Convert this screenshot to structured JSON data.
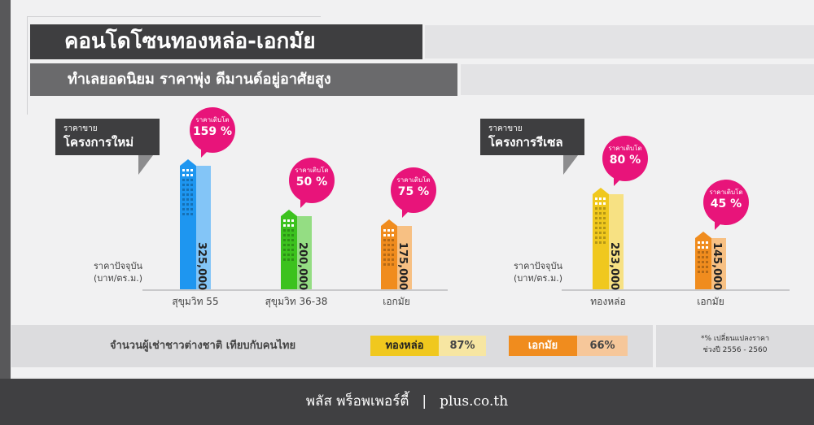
{
  "header": {
    "title": "คอนโดโซนทองหล่อ-เอกมัย",
    "subtitle": "ทำเลยอดนิยม ราคาพุ่ง ดีมานด์อยู่อาศัยสูง"
  },
  "colors": {
    "accent": "#e8147a",
    "sukhumvit55": "#1e96f0",
    "sukhumvit36": "#3cc21e",
    "ekkamai": "#f08c1e",
    "thonglor": "#f0c81e"
  },
  "chart_data": [
    {
      "type": "bar",
      "title_line1": "ราคาขาย",
      "title_line2": "โครงการใหม่",
      "ylabel_line1": "ราคาปัจจุบัน",
      "ylabel_line2": "(บาท/ตร.ม.)",
      "categories": [
        "สุขุมวิท 55",
        "สุขุมวิท 36-38",
        "เอกมัย"
      ],
      "values": [
        325000,
        200000,
        175000
      ],
      "value_labels": [
        "325,000",
        "200,000",
        "175,000"
      ],
      "growth_label": "ราคาเติบโต",
      "growth": [
        "159 %",
        "50 %",
        "75 %"
      ],
      "colors": [
        "#1e96f0",
        "#3cc21e",
        "#f08c1e"
      ]
    },
    {
      "type": "bar",
      "title_line1": "ราคาขาย",
      "title_line2": "โครงการรีเซล",
      "ylabel_line1": "ราคาปัจจุบัน",
      "ylabel_line2": "(บาท/ตร.ม.)",
      "categories": [
        "ทองหล่อ",
        "เอกมัย"
      ],
      "values": [
        253000,
        145000
      ],
      "value_labels": [
        "253,000",
        "145,000"
      ],
      "growth_label": "ราคาเติบโต",
      "growth": [
        "80 %",
        "45 %"
      ],
      "colors": [
        "#f0c81e",
        "#f08c1e"
      ]
    }
  ],
  "tenants": {
    "label": "จำนวนผู้เช่าชาวต่างชาติ เทียบกับคนไทย",
    "items": [
      {
        "area": "ทองหล่อ",
        "percent": "87%"
      },
      {
        "area": "เอกมัย",
        "percent": "66%"
      }
    ]
  },
  "note": {
    "line1": "*% เปลี่ยนแปลงราคา",
    "line2": "ช่วงปี 2556 - 2560"
  },
  "footer": {
    "brand": "พลัส พร็อพเพอร์ตี้",
    "separator": "|",
    "site": "plus.co.th"
  }
}
